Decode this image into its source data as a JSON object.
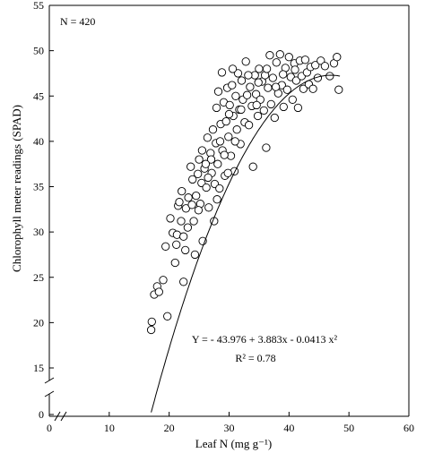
{
  "chart_data": {
    "type": "scatter",
    "title": "",
    "xlabel": "Leaf N (mg g⁻¹)",
    "ylabel": "Chlorophyll meter readings (SPAD)",
    "xlim": [
      0,
      60
    ],
    "ylim": [
      0,
      55
    ],
    "y_axis_break": true,
    "x_axis_break": true,
    "x_ticks": [
      "0",
      "10",
      "20",
      "30",
      "40",
      "50",
      "60"
    ],
    "y_ticks": [
      "0",
      "15",
      "20",
      "25",
      "30",
      "35",
      "40",
      "45",
      "50",
      "55"
    ],
    "grid": false,
    "legend": "none",
    "marker": "open-circle",
    "annotations": {
      "n_label": "N = 420",
      "equation": "Y =  - 43.976 + 3.883x - 0.0413 x²",
      "r_squared": "R² = 0.78"
    },
    "fit_curve": {
      "intercept": -43.976,
      "b1": 3.883,
      "b2": -0.0413,
      "x_range": [
        17,
        48.5
      ]
    },
    "points": [
      [
        17.0,
        19.2
      ],
      [
        17.1,
        20.1
      ],
      [
        17.5,
        23.1
      ],
      [
        18.0,
        24.0
      ],
      [
        18.3,
        23.4
      ],
      [
        19.0,
        24.7
      ],
      [
        19.4,
        28.4
      ],
      [
        19.7,
        20.7
      ],
      [
        20.2,
        31.5
      ],
      [
        20.6,
        29.9
      ],
      [
        21.0,
        26.6
      ],
      [
        21.2,
        28.6
      ],
      [
        21.3,
        29.7
      ],
      [
        21.5,
        32.9
      ],
      [
        21.7,
        33.3
      ],
      [
        22.0,
        31.2
      ],
      [
        22.1,
        34.5
      ],
      [
        22.4,
        29.5
      ],
      [
        22.4,
        24.5
      ],
      [
        22.7,
        28.0
      ],
      [
        22.8,
        32.6
      ],
      [
        23.1,
        30.5
      ],
      [
        23.2,
        33.8
      ],
      [
        23.6,
        37.2
      ],
      [
        23.9,
        35.8
      ],
      [
        24.1,
        31.2
      ],
      [
        24.3,
        27.5
      ],
      [
        24.5,
        34.0
      ],
      [
        24.8,
        36.4
      ],
      [
        25.0,
        38.0
      ],
      [
        25.2,
        33.1
      ],
      [
        25.4,
        35.4
      ],
      [
        25.5,
        39.0
      ],
      [
        25.6,
        29.0
      ],
      [
        25.9,
        37.0
      ],
      [
        26.2,
        34.9
      ],
      [
        26.4,
        40.4
      ],
      [
        26.6,
        32.7
      ],
      [
        26.9,
        38.7
      ],
      [
        27.1,
        36.5
      ],
      [
        27.3,
        41.3
      ],
      [
        27.5,
        31.2
      ],
      [
        27.6,
        35.3
      ],
      [
        27.8,
        39.8
      ],
      [
        27.9,
        43.7
      ],
      [
        28.1,
        37.5
      ],
      [
        28.2,
        45.5
      ],
      [
        28.4,
        34.8
      ],
      [
        28.6,
        41.9
      ],
      [
        28.8,
        47.6
      ],
      [
        28.9,
        39.0
      ],
      [
        29.1,
        44.3
      ],
      [
        29.3,
        36.2
      ],
      [
        29.5,
        42.2
      ],
      [
        29.7,
        45.9
      ],
      [
        29.9,
        40.5
      ],
      [
        30.1,
        44.0
      ],
      [
        30.3,
        38.4
      ],
      [
        30.5,
        46.2
      ],
      [
        30.7,
        42.8
      ],
      [
        30.9,
        36.7
      ],
      [
        31.1,
        45.0
      ],
      [
        31.3,
        41.3
      ],
      [
        31.5,
        47.5
      ],
      [
        31.7,
        43.5
      ],
      [
        31.9,
        39.7
      ],
      [
        32.1,
        46.7
      ],
      [
        32.3,
        44.6
      ],
      [
        32.6,
        42.1
      ],
      [
        32.8,
        48.8
      ],
      [
        33.0,
        45.1
      ],
      [
        33.3,
        41.8
      ],
      [
        33.5,
        46.0
      ],
      [
        33.8,
        43.9
      ],
      [
        34.0,
        37.2
      ],
      [
        34.3,
        47.3
      ],
      [
        34.5,
        45.2
      ],
      [
        34.8,
        42.8
      ],
      [
        35.0,
        48.0
      ],
      [
        35.2,
        44.6
      ],
      [
        35.5,
        46.6
      ],
      [
        35.8,
        43.4
      ],
      [
        36.0,
        47.3
      ],
      [
        36.2,
        39.3
      ],
      [
        36.5,
        45.9
      ],
      [
        36.8,
        49.5
      ],
      [
        37.0,
        44.1
      ],
      [
        37.3,
        47.0
      ],
      [
        37.6,
        42.6
      ],
      [
        37.9,
        48.7
      ],
      [
        38.2,
        45.3
      ],
      [
        38.5,
        49.6
      ],
      [
        38.8,
        46.2
      ],
      [
        39.1,
        43.8
      ],
      [
        39.4,
        48.1
      ],
      [
        39.7,
        45.7
      ],
      [
        40.0,
        49.3
      ],
      [
        40.3,
        47.1
      ],
      [
        40.6,
        44.6
      ],
      [
        40.9,
        48.6
      ],
      [
        41.2,
        46.7
      ],
      [
        41.5,
        43.7
      ],
      [
        41.8,
        48.9
      ],
      [
        42.1,
        47.2
      ],
      [
        42.4,
        45.8
      ],
      [
        42.7,
        49.0
      ],
      [
        43.0,
        47.6
      ],
      [
        43.3,
        46.3
      ],
      [
        43.6,
        48.2
      ],
      [
        44.0,
        45.8
      ],
      [
        44.4,
        48.4
      ],
      [
        44.8,
        47.0
      ],
      [
        45.3,
        48.9
      ],
      [
        46.0,
        48.3
      ],
      [
        46.8,
        47.2
      ],
      [
        47.5,
        48.6
      ],
      [
        48.0,
        49.3
      ],
      [
        48.3,
        45.7
      ],
      [
        26.5,
        36.0
      ],
      [
        27.0,
        38.0
      ],
      [
        28.5,
        40.0
      ],
      [
        29.2,
        38.5
      ],
      [
        30.0,
        43.0
      ],
      [
        31.0,
        40.0
      ],
      [
        32.0,
        43.5
      ],
      [
        33.2,
        47.3
      ],
      [
        34.6,
        44.0
      ],
      [
        36.3,
        48.0
      ],
      [
        23.8,
        33.0
      ],
      [
        24.9,
        32.4
      ],
      [
        26.1,
        37.5
      ],
      [
        28.0,
        33.6
      ],
      [
        29.8,
        36.5
      ],
      [
        30.6,
        48.0
      ],
      [
        34.9,
        46.5
      ],
      [
        37.8,
        46.0
      ],
      [
        39.0,
        47.4
      ],
      [
        41.0,
        47.9
      ]
    ]
  }
}
